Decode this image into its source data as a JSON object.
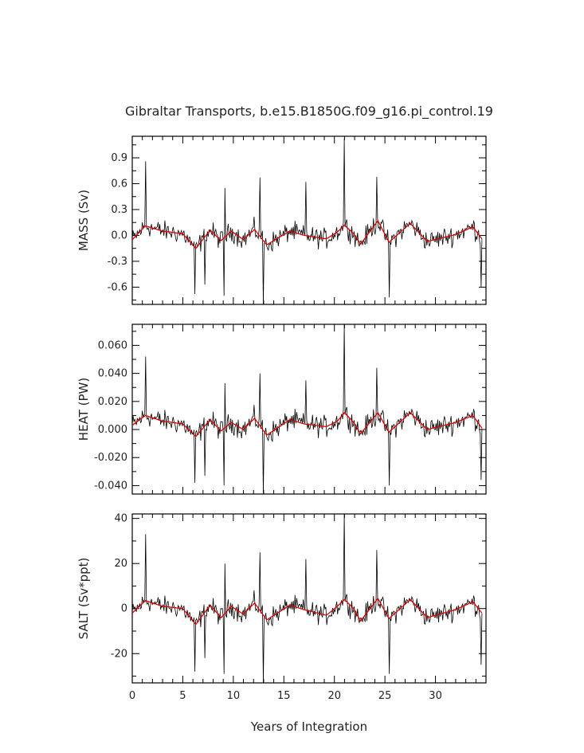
{
  "title": "Gibraltar Transports, b.e15.B1850G.f09_g16.pi_control.19",
  "xlabel": "Years of Integration",
  "colors": {
    "raw": "#000000",
    "smoothed": "#dd0000"
  },
  "chart_data": [
    {
      "type": "line",
      "ylabel": "MASS (Sv)",
      "xlim": [
        0,
        35
      ],
      "ylim": [
        -0.8,
        1.15
      ],
      "x_ticks": [
        0,
        5,
        10,
        15,
        20,
        25,
        30
      ],
      "y_ticks": [
        "-0.6",
        "-0.3",
        "0.0",
        "0.3",
        "0.6",
        "0.9"
      ],
      "y_tick_values": [
        -0.6,
        -0.3,
        0,
        0.3,
        0.6,
        0.9
      ],
      "noise_amplitude": 0.17,
      "spikes": [
        {
          "x": 1.3,
          "y": 0.86
        },
        {
          "x": 6.2,
          "y": -0.68
        },
        {
          "x": 7.2,
          "y": -0.57
        },
        {
          "x": 9.1,
          "y": -0.7
        },
        {
          "x": 9.2,
          "y": 0.55
        },
        {
          "x": 12.6,
          "y": 0.67
        },
        {
          "x": 13.0,
          "y": -0.8
        },
        {
          "x": 17.2,
          "y": 0.62
        },
        {
          "x": 21.0,
          "y": 1.12
        },
        {
          "x": 24.2,
          "y": 0.68
        },
        {
          "x": 25.4,
          "y": -0.72
        },
        {
          "x": 34.5,
          "y": -0.6
        }
      ],
      "smoothed": {
        "x": [
          0,
          1.3,
          3.0,
          5.0,
          6.3,
          7.7,
          8.8,
          9.8,
          11.0,
          12.1,
          13.3,
          15.6,
          17.0,
          19.2,
          20.3,
          21.0,
          21.9,
          22.6,
          24.3,
          25.4,
          27.5,
          29.2,
          32.0,
          33.7,
          34.6
        ],
        "y": [
          -0.05,
          0.11,
          0.05,
          0.02,
          -0.15,
          0.06,
          -0.06,
          0.05,
          -0.05,
          0.07,
          -0.11,
          0.05,
          0.0,
          -0.04,
          0.04,
          0.12,
          0.02,
          -0.1,
          0.17,
          -0.08,
          0.14,
          -0.07,
          0.01,
          0.1,
          -0.04
        ]
      }
    },
    {
      "type": "line",
      "ylabel": "HEAT (PW)",
      "xlim": [
        0,
        35
      ],
      "ylim": [
        -0.046,
        0.075
      ],
      "x_ticks": [
        0,
        5,
        10,
        15,
        20,
        25,
        30
      ],
      "y_ticks": [
        "-0.040",
        "-0.020",
        "0.000",
        "0.020",
        "0.040",
        "0.060"
      ],
      "y_tick_values": [
        -0.04,
        -0.02,
        0,
        0.02,
        0.04,
        0.06
      ],
      "noise_amplitude": 0.011,
      "spikes": [
        {
          "x": 1.3,
          "y": 0.052
        },
        {
          "x": 6.2,
          "y": -0.038
        },
        {
          "x": 7.2,
          "y": -0.033
        },
        {
          "x": 9.1,
          "y": -0.04
        },
        {
          "x": 9.2,
          "y": 0.033
        },
        {
          "x": 12.6,
          "y": 0.04
        },
        {
          "x": 13.0,
          "y": -0.046
        },
        {
          "x": 17.2,
          "y": 0.035
        },
        {
          "x": 21.0,
          "y": 0.075
        },
        {
          "x": 24.2,
          "y": 0.044
        },
        {
          "x": 25.4,
          "y": -0.04
        },
        {
          "x": 34.5,
          "y": -0.036
        }
      ],
      "smoothed": {
        "x": [
          0,
          1.3,
          3.0,
          5.0,
          6.3,
          7.7,
          8.8,
          9.8,
          11.0,
          12.1,
          13.3,
          15.6,
          17.0,
          19.2,
          20.3,
          21.0,
          21.9,
          22.6,
          24.3,
          25.4,
          27.5,
          29.2,
          32.0,
          33.7,
          34.6
        ],
        "y": [
          0.003,
          0.01,
          0.006,
          0.004,
          -0.005,
          0.007,
          -0.001,
          0.005,
          0.0,
          0.008,
          -0.004,
          0.007,
          0.004,
          0.002,
          0.006,
          0.012,
          0.005,
          -0.003,
          0.012,
          -0.002,
          0.012,
          0.0,
          0.005,
          0.01,
          0.001
        ]
      }
    },
    {
      "type": "line",
      "ylabel": "SALT (Sv*ppt)",
      "xlim": [
        0,
        35
      ],
      "ylim": [
        -33,
        42
      ],
      "x_ticks": [
        0,
        5,
        10,
        15,
        20,
        25,
        30
      ],
      "y_ticks": [
        "-20",
        "0",
        "20",
        "40"
      ],
      "y_tick_values": [
        -20,
        0,
        20,
        40
      ],
      "noise_amplitude": 6.5,
      "spikes": [
        {
          "x": 1.3,
          "y": 33
        },
        {
          "x": 6.2,
          "y": -28
        },
        {
          "x": 7.2,
          "y": -22
        },
        {
          "x": 9.1,
          "y": -29
        },
        {
          "x": 9.2,
          "y": 20
        },
        {
          "x": 12.6,
          "y": 25
        },
        {
          "x": 13.0,
          "y": -33
        },
        {
          "x": 17.2,
          "y": 22
        },
        {
          "x": 21.0,
          "y": 42
        },
        {
          "x": 24.2,
          "y": 26
        },
        {
          "x": 25.4,
          "y": -29
        },
        {
          "x": 34.5,
          "y": -25
        }
      ],
      "smoothed": {
        "x": [
          0,
          1.3,
          3.0,
          5.0,
          6.3,
          7.7,
          8.8,
          9.8,
          11.0,
          12.1,
          13.3,
          15.6,
          17.0,
          19.2,
          20.3,
          21.0,
          21.9,
          22.6,
          24.3,
          25.4,
          27.5,
          29.2,
          32.0,
          33.7,
          34.6
        ],
        "y": [
          -2,
          3.5,
          1,
          0,
          -7,
          1.5,
          -4,
          1,
          -2.5,
          2.5,
          -5,
          1.5,
          -0.5,
          -3,
          1,
          4,
          0,
          -5.5,
          4.5,
          -4.5,
          4,
          -4,
          -0.5,
          3,
          -2
        ]
      }
    }
  ]
}
